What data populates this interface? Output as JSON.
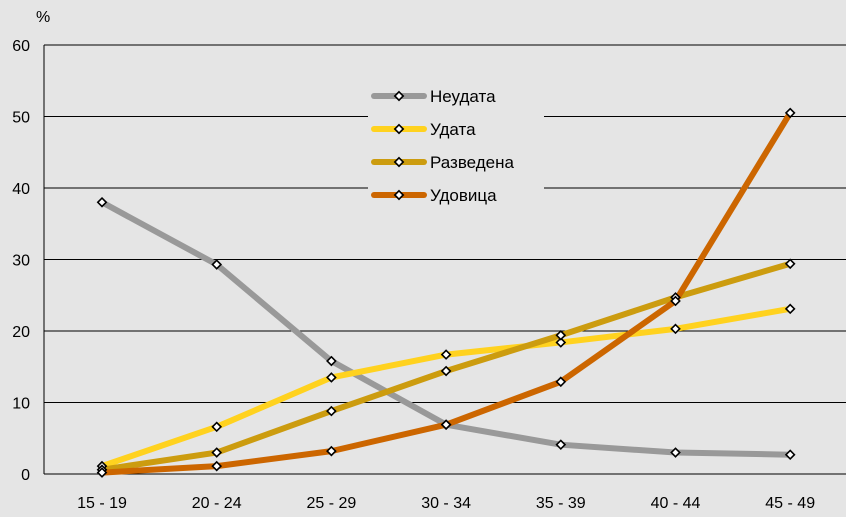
{
  "chart_data": {
    "type": "line",
    "title": "",
    "xlabel": "",
    "ylabel": "%",
    "ylim": [
      0,
      60
    ],
    "yticks": [
      0,
      10,
      20,
      30,
      40,
      50,
      60
    ],
    "grid": true,
    "legend_position": "top-center",
    "categories": [
      "15 - 19",
      "20 - 24",
      "25 - 29",
      "30 - 34",
      "35 - 39",
      "40 - 44",
      "45 - 49"
    ],
    "series": [
      {
        "name": "Неудата",
        "color": "#999999",
        "values": [
          38.0,
          29.3,
          15.8,
          6.9,
          4.1,
          3.0,
          2.7
        ]
      },
      {
        "name": "Удата",
        "color": "#ffd21f",
        "values": [
          1.1,
          6.6,
          13.5,
          16.7,
          18.4,
          20.3,
          23.1
        ]
      },
      {
        "name": "Разведена",
        "color": "#cc9c0f",
        "values": [
          0.6,
          3.0,
          8.8,
          14.4,
          19.4,
          24.7,
          29.4
        ]
      },
      {
        "name": "Удовица",
        "color": "#cc6600",
        "values": [
          0.2,
          1.1,
          3.2,
          6.9,
          12.9,
          24.2,
          50.5
        ]
      }
    ]
  }
}
